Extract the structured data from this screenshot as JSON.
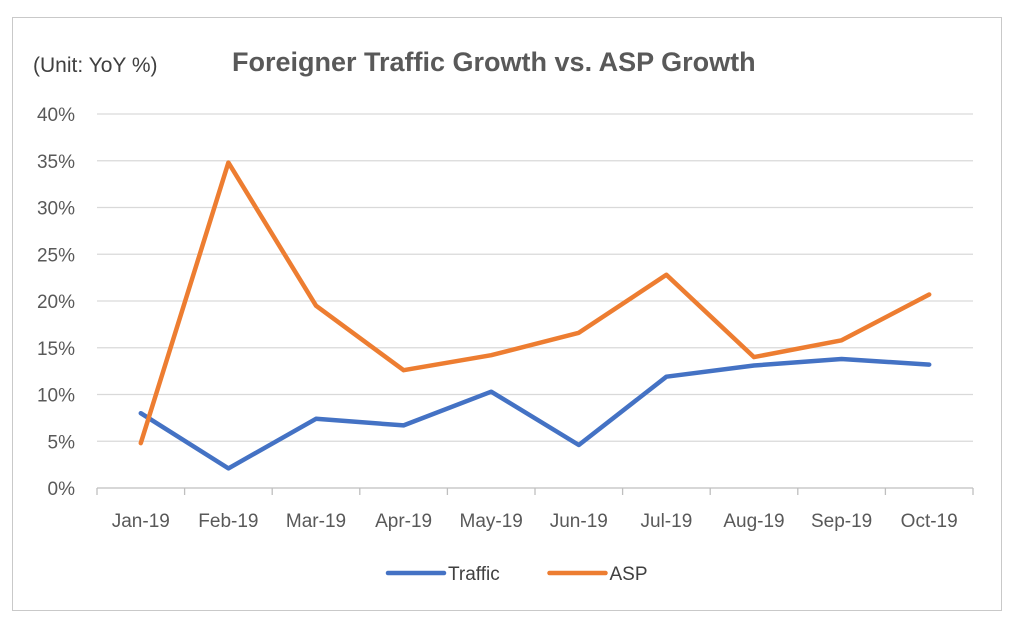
{
  "chart_data": {
    "type": "line",
    "title": "Foreigner Traffic Growth vs. ASP Growth",
    "unit_label": "(Unit: YoY %)",
    "categories": [
      "Jan-19",
      "Feb-19",
      "Mar-19",
      "Apr-19",
      "May-19",
      "Jun-19",
      "Jul-19",
      "Aug-19",
      "Sep-19",
      "Oct-19"
    ],
    "y_ticks": [
      "0%",
      "5%",
      "10%",
      "15%",
      "20%",
      "25%",
      "30%",
      "35%",
      "40%"
    ],
    "ylim": [
      0,
      40
    ],
    "grid": true,
    "legend_position": "bottom",
    "series": [
      {
        "name": "Traffic",
        "color": "#4472c4",
        "values": [
          8.0,
          2.1,
          7.4,
          6.7,
          10.3,
          4.6,
          11.9,
          13.1,
          13.8,
          13.2
        ]
      },
      {
        "name": "ASP",
        "color": "#ed7d31",
        "values": [
          4.8,
          34.8,
          19.5,
          12.6,
          14.2,
          16.6,
          22.8,
          14.0,
          15.8,
          20.7
        ]
      }
    ]
  }
}
